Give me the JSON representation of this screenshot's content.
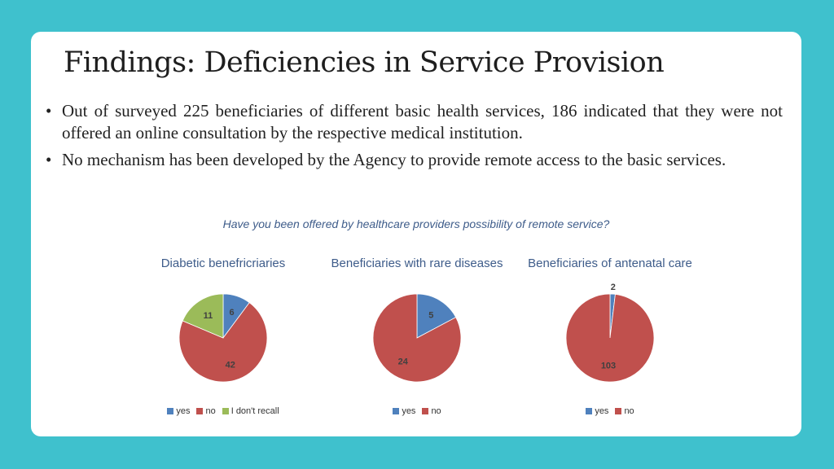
{
  "slide": {
    "title": "Findings: Deficiencies in Service Provision",
    "bullets": [
      "Out of surveyed 225 beneficiaries of different basic health services, 186 indicated that they were not offered an online consultation  by the respective medical institution.",
      "No mechanism has been developed by the Agency to provide remote access to the basic services."
    ],
    "bullet_symbol": "•",
    "question": "Have you been offered by healthcare providers possibility of remote service?"
  },
  "colors": {
    "background": "#3fc1cd",
    "yes": "#4f81bd",
    "no": "#c0504d",
    "dont_recall": "#9bbb59"
  },
  "chart_data": [
    {
      "type": "pie",
      "title": "Diabetic benefricriaries",
      "labels": [
        "yes",
        "no",
        "I don't recall"
      ],
      "values": [
        6,
        42,
        11
      ],
      "colors": [
        "#4f81bd",
        "#c0504d",
        "#9bbb59"
      ],
      "legend": "bottom"
    },
    {
      "type": "pie",
      "title": "Beneficiaries with rare diseases",
      "labels": [
        "yes",
        "no"
      ],
      "values": [
        5,
        24
      ],
      "colors": [
        "#4f81bd",
        "#c0504d"
      ],
      "legend": "bottom"
    },
    {
      "type": "pie",
      "title": "Beneficiaries of antenatal care",
      "labels": [
        "yes",
        "no"
      ],
      "values": [
        2,
        103
      ],
      "colors": [
        "#4f81bd",
        "#c0504d"
      ],
      "legend": "bottom"
    }
  ]
}
